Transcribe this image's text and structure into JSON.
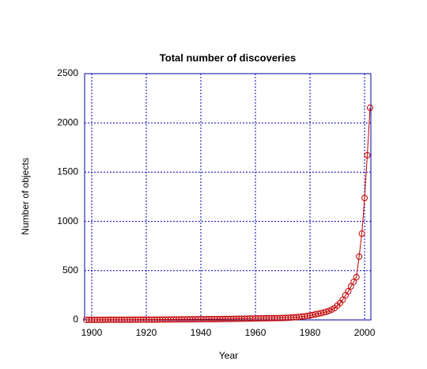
{
  "chart_data": {
    "type": "line",
    "title": "Total number of discoveries",
    "x_label": "Year",
    "y_label": "Number of objects",
    "x": [
      1898,
      1899,
      1900,
      1901,
      1902,
      1903,
      1904,
      1905,
      1906,
      1907,
      1908,
      1909,
      1910,
      1911,
      1912,
      1913,
      1914,
      1915,
      1916,
      1917,
      1918,
      1919,
      1920,
      1921,
      1922,
      1923,
      1924,
      1925,
      1926,
      1927,
      1928,
      1929,
      1930,
      1931,
      1932,
      1933,
      1934,
      1935,
      1936,
      1937,
      1938,
      1939,
      1940,
      1941,
      1942,
      1943,
      1944,
      1945,
      1946,
      1947,
      1948,
      1949,
      1950,
      1951,
      1952,
      1953,
      1954,
      1955,
      1956,
      1957,
      1958,
      1959,
      1960,
      1961,
      1962,
      1963,
      1964,
      1965,
      1966,
      1967,
      1968,
      1969,
      1970,
      1971,
      1972,
      1973,
      1974,
      1975,
      1976,
      1977,
      1978,
      1979,
      1980,
      1981,
      1982,
      1983,
      1984,
      1985,
      1986,
      1987,
      1988,
      1989,
      1990,
      1991,
      1992,
      1993,
      1994,
      1995,
      1996,
      1997,
      1998,
      1999,
      2000,
      2001,
      2002
    ],
    "series": [
      {
        "color": "#c00000",
        "values": [
          1,
          1,
          1,
          1,
          1,
          1,
          1,
          1,
          2,
          2,
          2,
          2,
          2,
          2,
          2,
          2,
          2,
          2,
          3,
          3,
          3,
          3,
          3,
          3,
          3,
          3,
          3,
          4,
          4,
          4,
          4,
          4,
          5,
          5,
          5,
          6,
          6,
          6,
          6,
          7,
          7,
          7,
          7,
          8,
          8,
          8,
          8,
          8,
          8,
          9,
          9,
          10,
          10,
          10,
          11,
          11,
          12,
          12,
          13,
          13,
          14,
          14,
          15,
          15,
          16,
          16,
          17,
          17,
          18,
          18,
          19,
          19,
          20,
          21,
          22,
          24,
          26,
          28,
          31,
          34,
          37,
          41,
          45,
          50,
          56,
          62,
          68,
          75,
          82,
          92,
          105,
          120,
          145,
          170,
          205,
          250,
          290,
          340,
          386,
          434,
          643,
          876,
          1238,
          1672,
          2154
        ]
      }
    ],
    "xlim": [
      1897.4,
      2002.3
    ],
    "ylim": [
      0,
      2500
    ],
    "xticks": [
      1900,
      1920,
      1940,
      1960,
      1980,
      2000
    ],
    "yticks": [
      0,
      500,
      1000,
      1500,
      2000,
      2500
    ],
    "grid": true
  }
}
